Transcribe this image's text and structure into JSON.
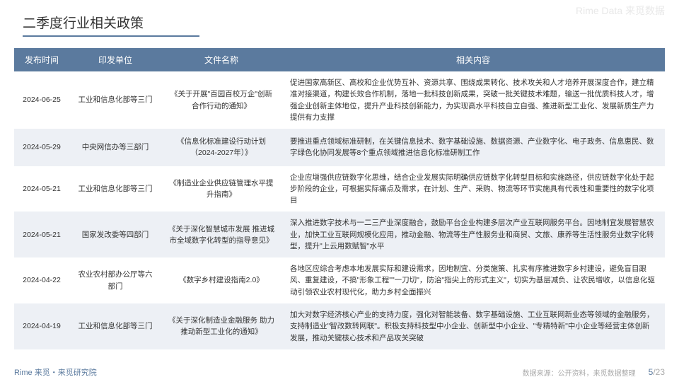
{
  "watermark": "Rime Data 来觅数据",
  "title": "二季度行业相关政策",
  "headers": [
    "发布时间",
    "印发单位",
    "文件名称",
    "相关内容"
  ],
  "rows": [
    {
      "date": "2024-06-25",
      "issuer": "工业和信息化部等三门",
      "doc": "《关于开展\"百园百校万企\"创新合作行动的通知》",
      "content": "促进国家高新区、高校和企业优势互补、资源共享、围绕成果转化、技术攻关和人才培养开展深度合作，建立精准对接渠道，构建长效合作机制，落地一批科技创新成果，突破一批关键技术难题，输送一批优质科技人才，增强企业创新主体地位，提升产业科技创新能力，为实现高水平科技自立自强、推进新型工业化、发展新质生产力提供有力支撑"
    },
    {
      "date": "2024-05-29",
      "issuer": "中央网信办等三部门",
      "doc": "《信息化标准建设行动计划（2024-2027年）》",
      "content": "要推进重点领域标准研制，在关键信息技术、数字基础设施、数据资源、产业数字化、电子政务、信息惠民、数字绿色化协同发展等8个重点领域推进信息化标准研制工作"
    },
    {
      "date": "2024-05-21",
      "issuer": "工业和信息化部等三门",
      "doc": "《制造业企业供应链管理水平提升指南》",
      "content": "企业应增强供应链数字化思维，结合企业发展实际明确供应链数字化转型目标和实施路径，供应链数字化处于起步阶段的企业，可根据实际痛点及需求，在计划、生产、采购、物流等环节实施具有代表性和重要性的数字化项目"
    },
    {
      "date": "2024-05-21",
      "issuer": "国家发改委等四部门",
      "doc": "《关于深化智慧城市发展 推进城市全域数字化转型的指导意见》",
      "content": "深入推进数字技术与一二三产业深度融合，鼓励平台企业构建多层次产业互联网服务平台。因地制宜发展智慧农业，加快工业互联网规模化应用，推动金融、物流等生产性服务业和商贸、文旅、康养等生活性服务业数字化转型，提升\"上云用数赋智\"水平"
    },
    {
      "date": "2024-04-22",
      "issuer": "农业农村部办公厅等六部门",
      "doc": "《数字乡村建设指南2.0》",
      "content": "各地区应综合考虑本地发展实际和建设需求，因地制宜、分类施策、扎实有序推进数字乡村建设，避免盲目跟风、重复建设，不搞\"形象工程\"\"一刀切\"，防治\"指尖上的形式主义\"，切实为基层减负、让农民增收，以信息化驱动引领农业农村现代化，助力乡村全面振兴"
    },
    {
      "date": "2024-04-19",
      "issuer": "工业和信息化部等三门",
      "doc": "《关于深化制造业金融服务 助力推动新型工业化的通知》",
      "content": "加大对数字经济核心产业的支持力度，强化对智能装备、数字基础设施、工业互联网新业态等领域的金融服务，支持制造业\"智改数转网联\"。积极支持科技型中小企业、创新型中小企业、\"专精特新\"中小企业等经营主体创新发展，推动关键核心技术和产品攻关突破"
    }
  ],
  "footer_left": "Rime 来觅・来觅研究院",
  "data_source": "数据来源：公开资料，来觅数据整理",
  "page": "5",
  "total": "/23",
  "colors": {
    "header_bg": "#5b7a9e",
    "row_alt_bg": "#edf0f5"
  }
}
